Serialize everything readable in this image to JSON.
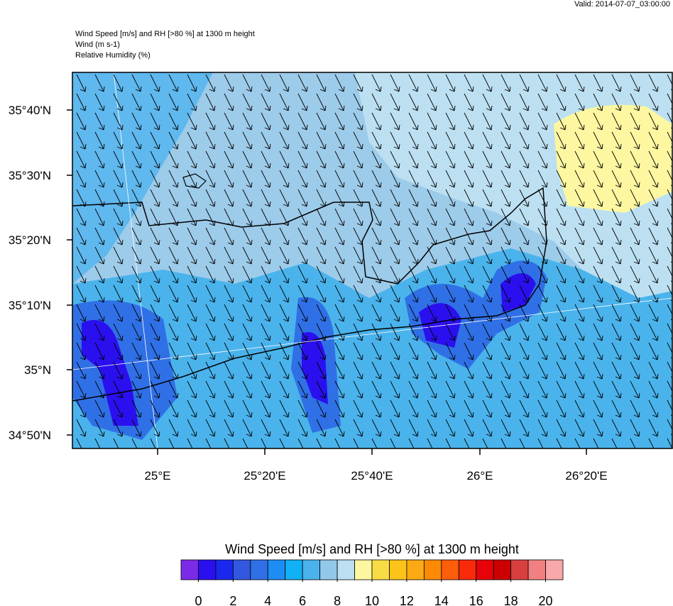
{
  "valid": "Valid: 2014-07-07_03:00:00",
  "header": {
    "title": "Wind Speed [m/s] and RH [>80 %] at 1300 m height",
    "line2": "Wind   (m s-1)",
    "line3": "Relative Humidity   (%)"
  },
  "map": {
    "lat_labels": [
      "35°40'N",
      "35°30'N",
      "35°20'N",
      "35°10'N",
      "35°N",
      "34°50'N"
    ],
    "lon_labels": [
      "25°E",
      "25°20'E",
      "25°40'E",
      "26°E",
      "26°20'E"
    ]
  },
  "colorbar": {
    "title": "Wind Speed [m/s] and RH [>80 %] at 1300 m height",
    "lim": [
      -1,
      21
    ],
    "ticks": [
      0,
      2,
      4,
      6,
      8,
      10,
      12,
      14,
      16,
      18,
      20
    ],
    "colors": [
      "#7b2ae8",
      "#2b10ef",
      "#1a28ee",
      "#3258e0",
      "#3070e6",
      "#1e8cf5",
      "#12b0f5",
      "#4ab3ec",
      "#92c8ea",
      "#bce0f2",
      "#fcf7a0",
      "#f8dc45",
      "#fcc41a",
      "#fcaa14",
      "#fc8a05",
      "#fc5e0a",
      "#f82a0a",
      "#e8020a",
      "#cc0000",
      "#d84040",
      "#f28080",
      "#f8a8a8"
    ]
  }
}
